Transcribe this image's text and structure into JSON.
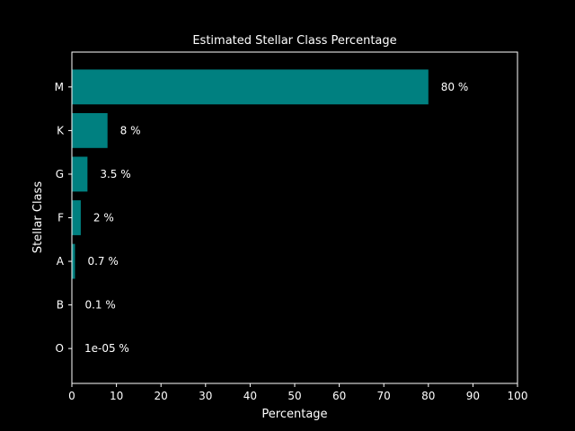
{
  "chart_data": {
    "type": "bar",
    "orientation": "horizontal",
    "title": "Estimated Stellar Class Percentage",
    "xlabel": "Percentage",
    "ylabel": "Stellar Class",
    "categories": [
      "O",
      "B",
      "A",
      "F",
      "G",
      "K",
      "M"
    ],
    "values": [
      1e-05,
      0.1,
      0.7,
      2,
      3.5,
      8,
      80
    ],
    "data_labels": [
      "1e-05 %",
      "0.1 %",
      "0.7 %",
      "2 %",
      "3.5 %",
      "8 %",
      "80 %"
    ],
    "xlim": [
      0,
      100
    ],
    "xticks": [
      "0",
      "10",
      "20",
      "30",
      "40",
      "50",
      "60",
      "70",
      "80",
      "90",
      "100"
    ],
    "grid": false,
    "colors": {
      "bar": "#008080",
      "background": "#000000",
      "foreground": "#ffffff"
    }
  }
}
